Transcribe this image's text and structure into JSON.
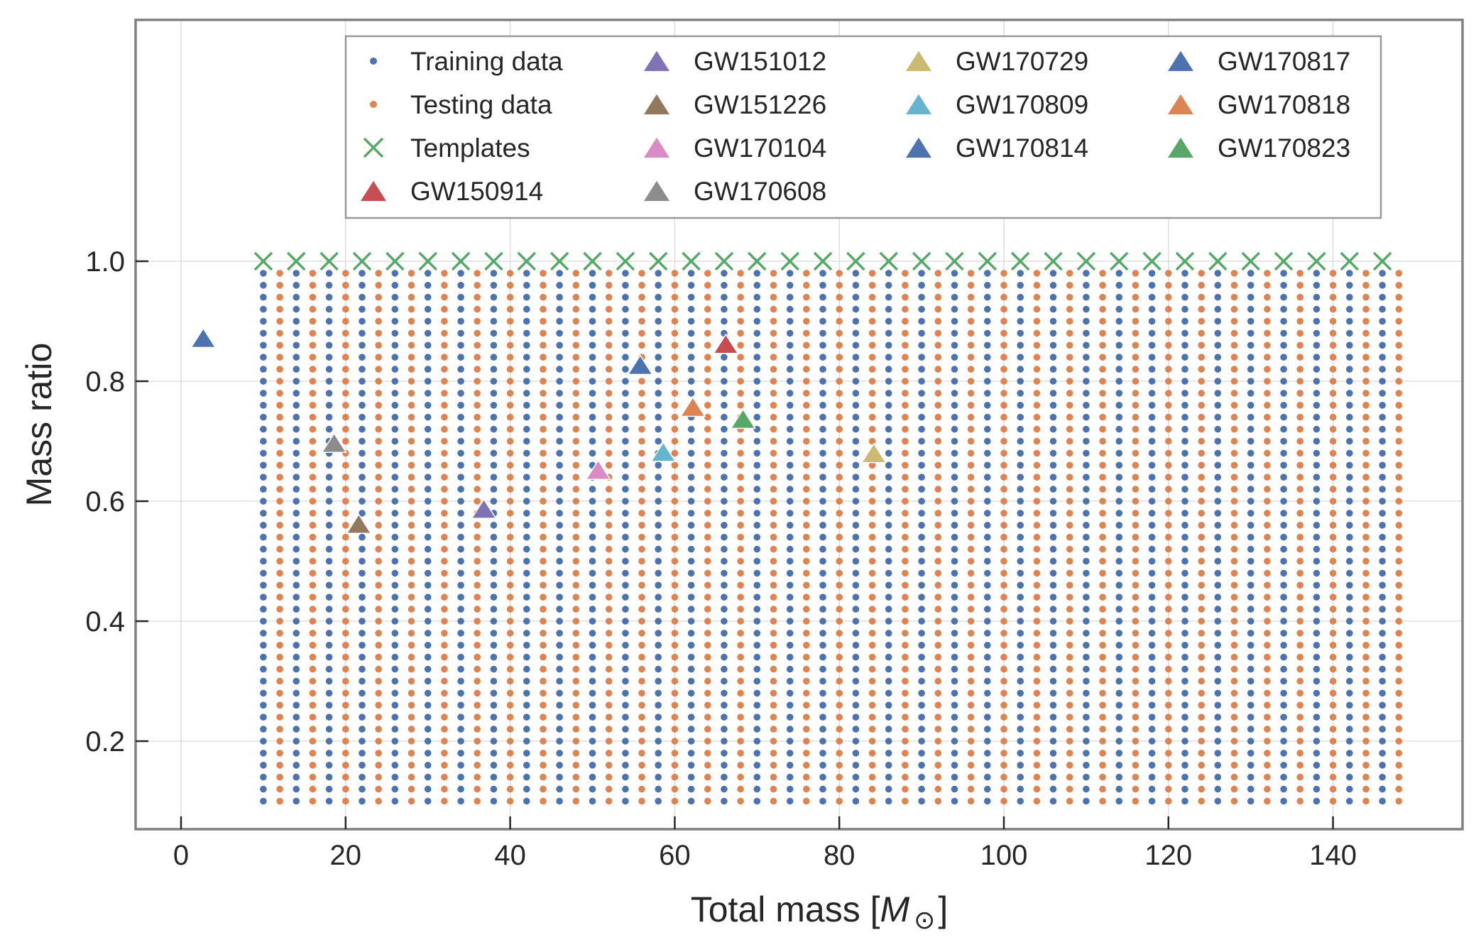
{
  "chart_data": {
    "type": "scatter",
    "xlabel_prefix": "Total mass [",
    "xlabel_symbol": "M",
    "xlabel_subscript": "⊙",
    "xlabel_suffix": "]",
    "ylabel": "Mass ratio",
    "xlim": [
      -5.5,
      155
    ],
    "ylim": [
      0.05,
      1.4
    ],
    "xticks": [
      {
        "value": 0,
        "label": "0"
      },
      {
        "value": 20,
        "label": "20"
      },
      {
        "value": 40,
        "label": "40"
      },
      {
        "value": 60,
        "label": "60"
      },
      {
        "value": 80,
        "label": "80"
      },
      {
        "value": 100,
        "label": "100"
      },
      {
        "value": 120,
        "label": "120"
      },
      {
        "value": 140,
        "label": "140"
      }
    ],
    "yticks": [
      {
        "value": 0.2,
        "label": "0.2"
      },
      {
        "value": 0.4,
        "label": "0.4"
      },
      {
        "value": 0.6,
        "label": "0.6"
      },
      {
        "value": 0.8,
        "label": "0.8"
      },
      {
        "value": 1.0,
        "label": "1.0"
      }
    ],
    "grid": true,
    "grid_specification": {
      "total_mass_start": 10,
      "total_mass_end": 148,
      "total_mass_step": 2,
      "mass_ratio_start": 0.1,
      "mass_ratio_end": 0.98,
      "mass_ratio_step": 0.02,
      "training_columns_start_at": 10,
      "pattern": "alternating columns: training, testing, training, testing ..."
    },
    "series": [
      {
        "name": "Training data",
        "marker": "dot",
        "color": "#4c72b0"
      },
      {
        "name": "Testing data",
        "marker": "dot",
        "color": "#dd8452"
      },
      {
        "name": "Templates",
        "marker": "x",
        "color": "#55a868",
        "x": [
          10,
          14,
          18,
          22,
          26,
          30,
          34,
          38,
          42,
          46,
          50,
          54,
          58,
          62,
          66,
          70,
          74,
          78,
          82,
          86,
          90,
          94,
          98,
          102,
          106,
          110,
          114,
          118,
          122,
          126,
          130,
          134,
          138,
          142,
          146
        ],
        "y": 1.0
      }
    ],
    "events": [
      {
        "name": "GW150914",
        "x": 66.2,
        "y": 0.86,
        "color": "#c44e52"
      },
      {
        "name": "GW151012",
        "x": 36.8,
        "y": 0.585,
        "color": "#8172b3"
      },
      {
        "name": "GW151226",
        "x": 21.6,
        "y": 0.56,
        "color": "#937860"
      },
      {
        "name": "GW170104",
        "x": 50.7,
        "y": 0.65,
        "color": "#da8bc3"
      },
      {
        "name": "GW170608",
        "x": 18.6,
        "y": 0.695,
        "color": "#8c8c8c"
      },
      {
        "name": "GW170729",
        "x": 84.2,
        "y": 0.678,
        "color": "#ccb974"
      },
      {
        "name": "GW170809",
        "x": 58.6,
        "y": 0.68,
        "color": "#64b5cd"
      },
      {
        "name": "GW170814",
        "x": 55.8,
        "y": 0.825,
        "color": "#4c72b0"
      },
      {
        "name": "GW170817",
        "x": 2.7,
        "y": 0.87,
        "color": "#4c72b0"
      },
      {
        "name": "GW170818",
        "x": 62.2,
        "y": 0.755,
        "color": "#dd8452"
      },
      {
        "name": "GW170823",
        "x": 68.3,
        "y": 0.735,
        "color": "#55a868"
      }
    ],
    "legend": {
      "placement": "top-center",
      "columns": [
        [
          "Training data",
          "Testing data",
          "Templates",
          "GW150914"
        ],
        [
          "GW151012",
          "GW151226",
          "GW170104",
          "GW170608"
        ],
        [
          "GW170729",
          "GW170809",
          "GW170814"
        ],
        [
          "GW170817",
          "GW170818",
          "GW170823"
        ]
      ]
    }
  }
}
